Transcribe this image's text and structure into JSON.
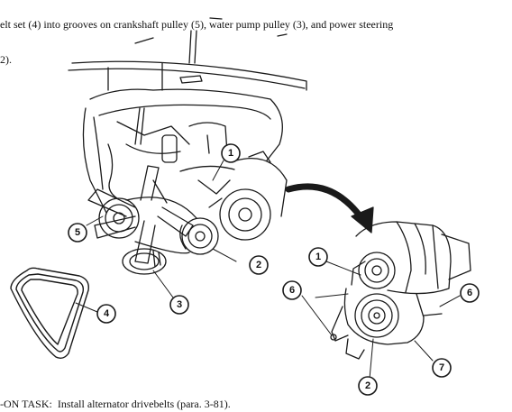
{
  "instruction": {
    "line1": "elt set (4) into grooves on crankshaft pulley (5), water pump pulley (3), and power steering",
    "line2": "2)."
  },
  "callouts": [
    "1",
    "2",
    "3",
    "4",
    "5",
    "6",
    "1",
    "6",
    "6",
    "7",
    "2"
  ],
  "followon": "-ON TASK:  Install alternator drivebelts (para. 3-81)."
}
